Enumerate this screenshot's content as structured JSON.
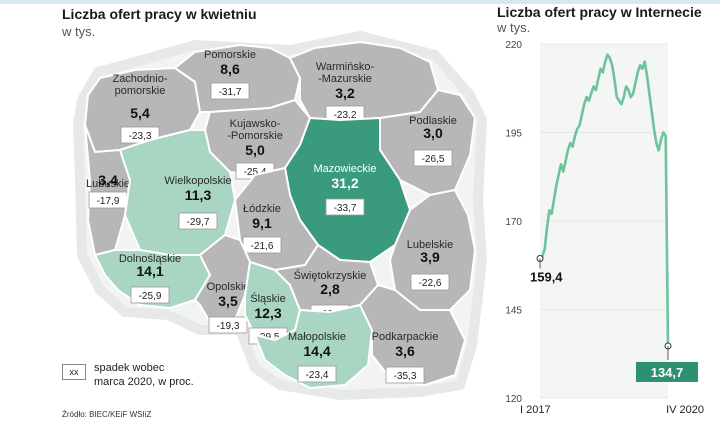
{
  "map": {
    "title": "Liczba ofert pracy w kwietniu",
    "subtitle": "w tys.",
    "legend_box": "xx",
    "legend_text_1": "spadek wobec",
    "legend_text_2": "marca 2020, w proc.",
    "source": "Źródło: BIEC/KEiF WSIiZ",
    "colors": {
      "gray": "#b7b7b9",
      "light_green": "#a9d5c3",
      "dark_green": "#3a9a7e",
      "border": "#ffffff"
    },
    "regions": [
      {
        "name": [
          "Zachodnio-",
          "pomorskie"
        ],
        "value": "5,4",
        "change": "-23,3",
        "fill": "gray"
      },
      {
        "name": [
          "Pomorskie"
        ],
        "value": "8,6",
        "change": "-31,7",
        "fill": "gray"
      },
      {
        "name": [
          "Warmińsko-",
          "-Mazurskie"
        ],
        "value": "3,2",
        "change": "-23,2",
        "fill": "gray"
      },
      {
        "name": [
          "Kujawsko-",
          "-Pomorskie"
        ],
        "value": "5,0",
        "change": "-25,4",
        "fill": "gray"
      },
      {
        "name": [
          "Podlaskie"
        ],
        "value": "3,0",
        "change": "-26,5",
        "fill": "gray"
      },
      {
        "name": [
          "Lubuskie"
        ],
        "value": "3,4",
        "change": "-17,9",
        "fill": "gray"
      },
      {
        "name": [
          "Wielkopolskie"
        ],
        "value": "11,3",
        "change": "-29,7",
        "fill": "light_green"
      },
      {
        "name": [
          "Mazowieckie"
        ],
        "value": "31,2",
        "change": "-33,7",
        "fill": "dark_green"
      },
      {
        "name": [
          "Łódzkie"
        ],
        "value": "9,1",
        "change": "-21,6",
        "fill": "gray"
      },
      {
        "name": [
          "Lubelskie"
        ],
        "value": "3,9",
        "change": "-22,6",
        "fill": "gray"
      },
      {
        "name": [
          "Dolnośląskie"
        ],
        "value": "14,1",
        "change": "-25,9",
        "fill": "light_green"
      },
      {
        "name": [
          "Opolskie"
        ],
        "value": "3,5",
        "change": "-19,3",
        "fill": "gray"
      },
      {
        "name": [
          "Śląskie"
        ],
        "value": "12,3",
        "change": "-29,5",
        "fill": "light_green"
      },
      {
        "name": [
          "Świętokrzyskie"
        ],
        "value": "2,8",
        "change": "-22,1",
        "fill": "gray"
      },
      {
        "name": [
          "Małopolskie"
        ],
        "value": "14,4",
        "change": "-23,4",
        "fill": "light_green"
      },
      {
        "name": [
          "Podkarpackie"
        ],
        "value": "3,6",
        "change": "-35,3",
        "fill": "gray"
      }
    ]
  },
  "chart_data": {
    "type": "line",
    "title": "Liczba ofert pracy w Internecie",
    "subtitle": "w tys.",
    "ylim": [
      120,
      220
    ],
    "yticks": [
      120,
      145,
      170,
      195,
      220
    ],
    "x_labels": [
      "I 2017",
      "IV 2020"
    ],
    "series_color": "#6fc39b",
    "start_label": "159,4",
    "end_label": "134,7",
    "values": [
      159.4,
      160,
      162,
      168,
      173,
      172,
      176,
      180,
      183,
      186,
      184,
      187,
      190,
      192,
      191,
      194,
      196,
      197,
      200,
      203,
      205,
      204,
      206,
      208,
      207,
      210,
      213,
      212,
      215,
      217,
      216,
      214,
      210,
      205,
      204,
      203,
      205,
      208,
      207,
      205,
      206,
      209,
      212,
      214,
      213,
      215,
      211,
      206,
      201,
      196,
      192,
      190,
      193,
      195,
      194,
      134.7
    ]
  }
}
